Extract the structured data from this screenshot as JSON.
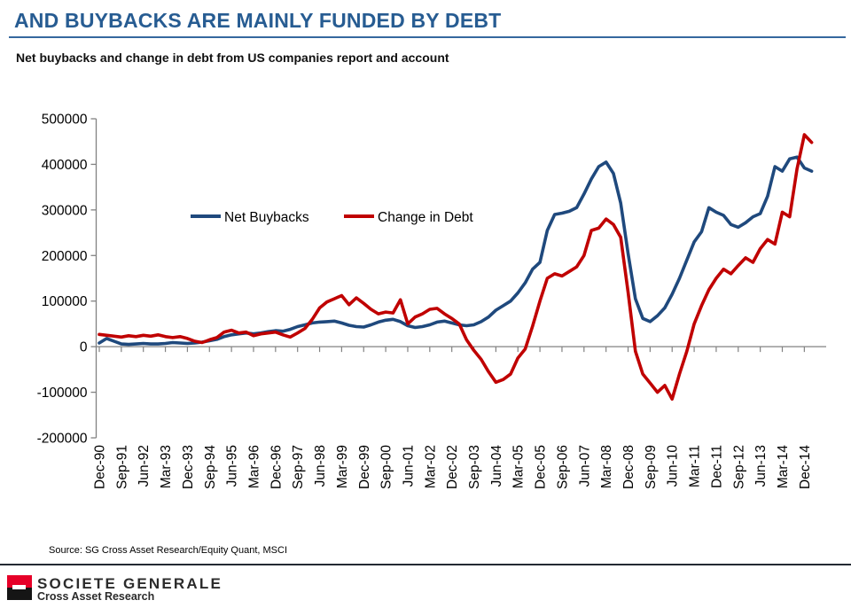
{
  "header": {
    "title": "AND BUYBACKS ARE MAINLY FUNDED BY DEBT",
    "subtitle": "Net buybacks and change in debt from US companies report and account"
  },
  "source": "Source: SG Cross Asset Research/Equity Quant, MSCI",
  "footer": {
    "brand": "SOCIETE GENERALE",
    "division": "Cross Asset Research",
    "logo_red": "#e60028",
    "logo_black": "#151515"
  },
  "colors": {
    "title_blue": "#275c92",
    "axis_gray": "#828282",
    "net_buybacks_blue": "#1f497d",
    "change_in_debt_red": "#c00000"
  },
  "chart_data": {
    "type": "line",
    "title": "Net buybacks and change in debt from US companies report and account",
    "xlabel": "",
    "ylabel": "",
    "ylim": [
      -200000,
      500000
    ],
    "y_ticks": [
      500000,
      400000,
      300000,
      200000,
      100000,
      0,
      -100000,
      -200000
    ],
    "x_tick_every": 3,
    "x_tick_labels": [
      "Dec-90",
      "Sep-91",
      "Jun-92",
      "Mar-93",
      "Dec-93",
      "Sep-94",
      "Jun-95",
      "Mar-96",
      "Dec-96",
      "Sep-97",
      "Jun-98",
      "Mar-99",
      "Dec-99",
      "Sep-00",
      "Jun-01",
      "Mar-02",
      "Dec-02",
      "Sep-03",
      "Jun-04",
      "Mar-05",
      "Dec-05",
      "Sep-06",
      "Jun-07",
      "Mar-08",
      "Dec-08",
      "Sep-09",
      "Jun-10",
      "Mar-11",
      "Dec-11",
      "Sep-12",
      "Jun-13",
      "Mar-14",
      "Dec-14"
    ],
    "grid": "zero-line-only",
    "legend_position": "inside-upper-left",
    "x": [
      "Dec-90",
      "Mar-91",
      "Jun-91",
      "Sep-91",
      "Dec-91",
      "Mar-92",
      "Jun-92",
      "Sep-92",
      "Dec-92",
      "Mar-93",
      "Jun-93",
      "Sep-93",
      "Dec-93",
      "Mar-94",
      "Jun-94",
      "Sep-94",
      "Dec-94",
      "Mar-95",
      "Jun-95",
      "Sep-95",
      "Dec-95",
      "Mar-96",
      "Jun-96",
      "Sep-96",
      "Dec-96",
      "Mar-97",
      "Jun-97",
      "Sep-97",
      "Dec-97",
      "Mar-98",
      "Jun-98",
      "Sep-98",
      "Dec-98",
      "Mar-99",
      "Jun-99",
      "Sep-99",
      "Dec-99",
      "Mar-00",
      "Jun-00",
      "Sep-00",
      "Dec-00",
      "Mar-01",
      "Jun-01",
      "Sep-01",
      "Dec-01",
      "Mar-02",
      "Jun-02",
      "Sep-02",
      "Dec-02",
      "Mar-03",
      "Jun-03",
      "Sep-03",
      "Dec-03",
      "Mar-04",
      "Jun-04",
      "Sep-04",
      "Dec-04",
      "Mar-05",
      "Jun-05",
      "Sep-05",
      "Dec-05",
      "Mar-06",
      "Jun-06",
      "Sep-06",
      "Dec-06",
      "Mar-07",
      "Jun-07",
      "Sep-07",
      "Dec-07",
      "Mar-08",
      "Jun-08",
      "Sep-08",
      "Dec-08",
      "Mar-09",
      "Jun-09",
      "Sep-09",
      "Dec-09",
      "Mar-10",
      "Jun-10",
      "Sep-10",
      "Dec-10",
      "Mar-11",
      "Jun-11",
      "Sep-11",
      "Dec-11",
      "Mar-12",
      "Jun-12",
      "Sep-12",
      "Dec-12",
      "Mar-13",
      "Jun-13",
      "Sep-13",
      "Dec-13",
      "Mar-14",
      "Jun-14",
      "Sep-14",
      "Dec-14",
      "Mar-15"
    ],
    "series": [
      {
        "name": "Net Buybacks",
        "color": "#1f497d",
        "values": [
          8000,
          18000,
          12000,
          6000,
          5000,
          6000,
          7000,
          6000,
          6000,
          7000,
          9000,
          8000,
          7000,
          8000,
          10000,
          13000,
          16000,
          22000,
          26000,
          28000,
          30000,
          28000,
          30000,
          33000,
          35000,
          34000,
          38000,
          44000,
          48000,
          52000,
          54000,
          55000,
          56000,
          52000,
          47000,
          44000,
          43000,
          48000,
          54000,
          58000,
          60000,
          55000,
          46000,
          42000,
          44000,
          48000,
          54000,
          56000,
          52000,
          48000,
          46000,
          48000,
          55000,
          65000,
          80000,
          90000,
          100000,
          118000,
          140000,
          170000,
          185000,
          255000,
          290000,
          293000,
          297000,
          305000,
          335000,
          368000,
          395000,
          405000,
          380000,
          315000,
          205000,
          105000,
          62000,
          55000,
          68000,
          85000,
          115000,
          150000,
          190000,
          230000,
          252000,
          305000,
          295000,
          288000,
          268000,
          262000,
          272000,
          285000,
          292000,
          330000,
          395000,
          385000,
          412000,
          416000,
          392000,
          385000
        ]
      },
      {
        "name": "Change in Debt",
        "color": "#c00000",
        "values": [
          27000,
          25000,
          23000,
          21000,
          24000,
          22000,
          25000,
          23000,
          26000,
          22000,
          20000,
          22000,
          18000,
          12000,
          9000,
          15000,
          20000,
          32000,
          36000,
          30000,
          32000,
          24000,
          28000,
          30000,
          32000,
          26000,
          21000,
          30000,
          40000,
          60000,
          85000,
          98000,
          105000,
          112000,
          92000,
          107000,
          95000,
          82000,
          72000,
          76000,
          74000,
          103000,
          50000,
          65000,
          72000,
          82000,
          84000,
          72000,
          62000,
          50000,
          15000,
          -8000,
          -28000,
          -55000,
          -78000,
          -72000,
          -60000,
          -25000,
          -5000,
          45000,
          100000,
          150000,
          160000,
          155000,
          165000,
          175000,
          200000,
          255000,
          260000,
          280000,
          268000,
          240000,
          120000,
          -10000,
          -60000,
          -80000,
          -100000,
          -85000,
          -115000,
          -60000,
          -10000,
          50000,
          90000,
          125000,
          150000,
          170000,
          160000,
          178000,
          195000,
          185000,
          215000,
          235000,
          225000,
          295000,
          285000,
          390000,
          465000,
          448000
        ]
      }
    ]
  }
}
